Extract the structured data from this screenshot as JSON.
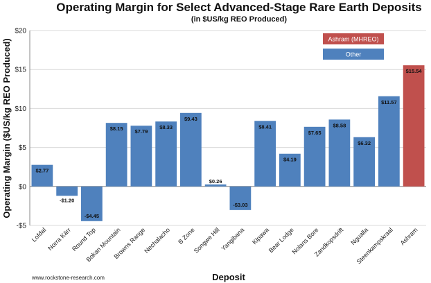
{
  "chart_data": {
    "type": "bar",
    "title": "Operating Margin for Select Advanced-Stage Rare Earth Deposits",
    "subtitle": "(in $US/kg REO Produced)",
    "xlabel": "Deposit",
    "ylabel": "Operating Margin ($US/kg REO Produced)",
    "ylim": [
      -5,
      20
    ],
    "yticks": [
      -5,
      0,
      5,
      10,
      15,
      20
    ],
    "ytick_labels": [
      "-$5",
      "$0",
      "$5",
      "$10",
      "$15",
      "$20"
    ],
    "grid": true,
    "legend_position": "top-right",
    "categories": [
      "Lofdal",
      "Norra Kärr",
      "Round Top",
      "Bokan Mountain",
      "Browns Range",
      "Nechalacho",
      "B Zone",
      "Songwe Hill",
      "Yangibana",
      "Kipawa",
      "Bear Lodge",
      "Nolans Bore",
      "Zandkopsdrift",
      "Ngualla",
      "Steenkampskraal",
      "Ashram"
    ],
    "values": [
      2.77,
      -1.2,
      -4.45,
      8.15,
      7.79,
      8.33,
      9.43,
      0.26,
      -3.03,
      8.41,
      4.19,
      7.65,
      8.58,
      6.32,
      11.57,
      15.54
    ],
    "data_labels": [
      "$2.77",
      "-$1.20",
      "-$4.45",
      "$8.15",
      "$7.79",
      "$8.33",
      "$9.43",
      "$0.26",
      "-$3.03",
      "$8.41",
      "$4.19",
      "$7.65",
      "$8.58",
      "$6.32",
      "$11.57",
      "$15.54"
    ],
    "series_colors": [
      "Other",
      "Other",
      "Other",
      "Other",
      "Other",
      "Other",
      "Other",
      "Other",
      "Other",
      "Other",
      "Other",
      "Other",
      "Other",
      "Other",
      "Other",
      "Ashram (MHREO)"
    ],
    "legend": [
      {
        "name": "Ashram (MHREO)",
        "color": "#c0504d"
      },
      {
        "name": "Other",
        "color": "#4f81bd"
      }
    ],
    "source": "www.rockstone-research.com"
  }
}
